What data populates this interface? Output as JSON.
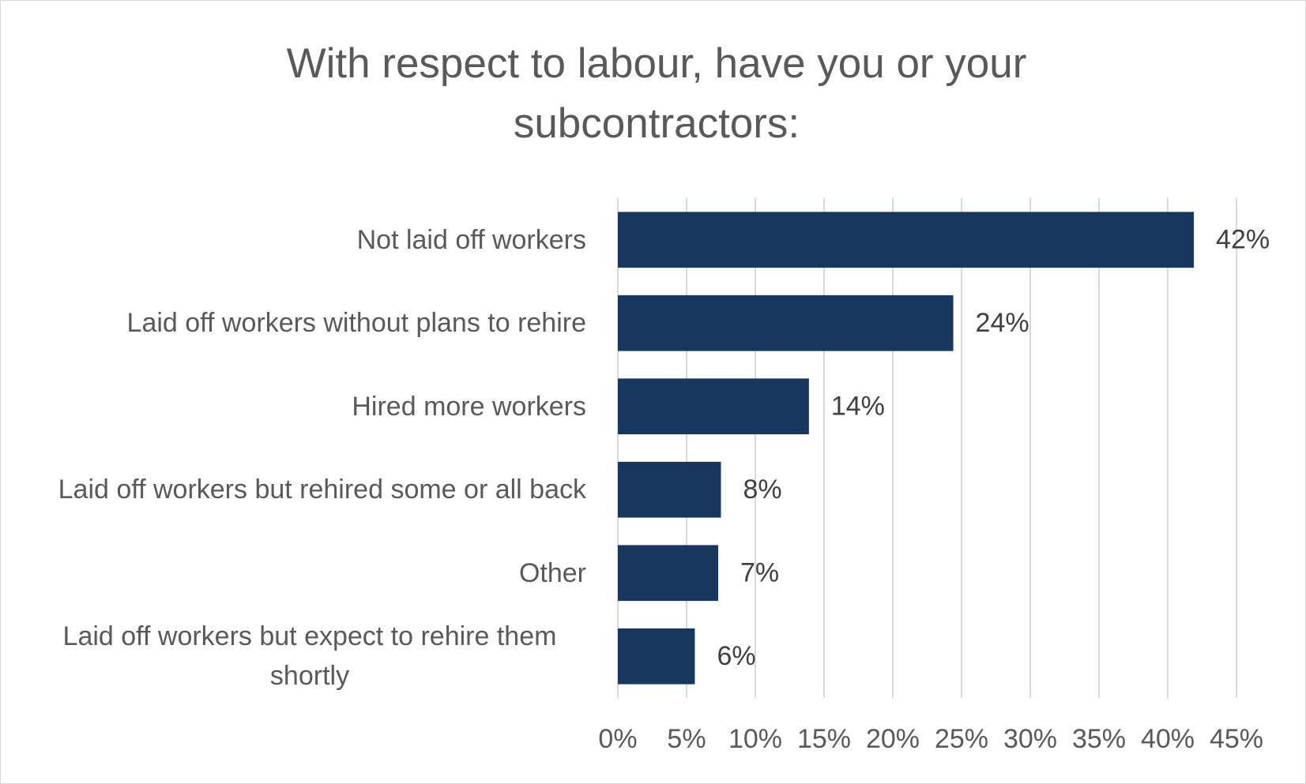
{
  "chart_data": {
    "type": "barh",
    "title": "With respect to labour, have you or your subcontractors:",
    "categories": [
      "Not laid off workers",
      "Laid off workers without plans to rehire",
      "Hired more workers",
      "Laid off workers but rehired some or all back",
      "Other",
      "Laid off workers but expect to rehire them shortly"
    ],
    "values": [
      41.9,
      24.4,
      13.9,
      7.5,
      7.3,
      5.6
    ],
    "value_labels": [
      "42%",
      "24%",
      "14%",
      "8%",
      "7%",
      "6%"
    ],
    "color": "#17375e",
    "xlim": [
      0,
      45
    ],
    "xticks": [
      {
        "value": 0,
        "label": "0%"
      },
      {
        "value": 5,
        "label": "5%"
      },
      {
        "value": 10,
        "label": "10%"
      },
      {
        "value": 15,
        "label": "15%"
      },
      {
        "value": 20,
        "label": "20%"
      },
      {
        "value": 25,
        "label": "25%"
      },
      {
        "value": 30,
        "label": "30%"
      },
      {
        "value": 35,
        "label": "35%"
      },
      {
        "value": 40,
        "label": "40%"
      },
      {
        "value": 45,
        "label": "45%"
      }
    ],
    "grid": true
  }
}
